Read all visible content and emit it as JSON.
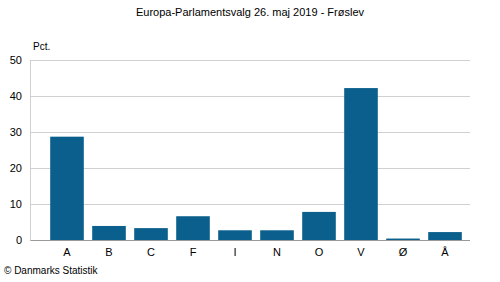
{
  "chart_data": {
    "type": "bar",
    "title": "Europa-Parlamentsvalg 26. maj 2019 - Frøslev",
    "ylabel": "Pct.",
    "annotations": [
      "© Danmarks Statistik"
    ],
    "categories": [
      "A",
      "B",
      "C",
      "F",
      "I",
      "N",
      "O",
      "V",
      "Ø",
      "Å"
    ],
    "values": [
      28.7,
      3.9,
      3.3,
      6.6,
      2.7,
      2.7,
      7.8,
      42.2,
      0.4,
      2.2
    ],
    "color": "#0b5f8c",
    "ylim": [
      0,
      50
    ],
    "yticks": [
      0,
      10,
      20,
      30,
      40,
      50
    ],
    "grid": true
  }
}
